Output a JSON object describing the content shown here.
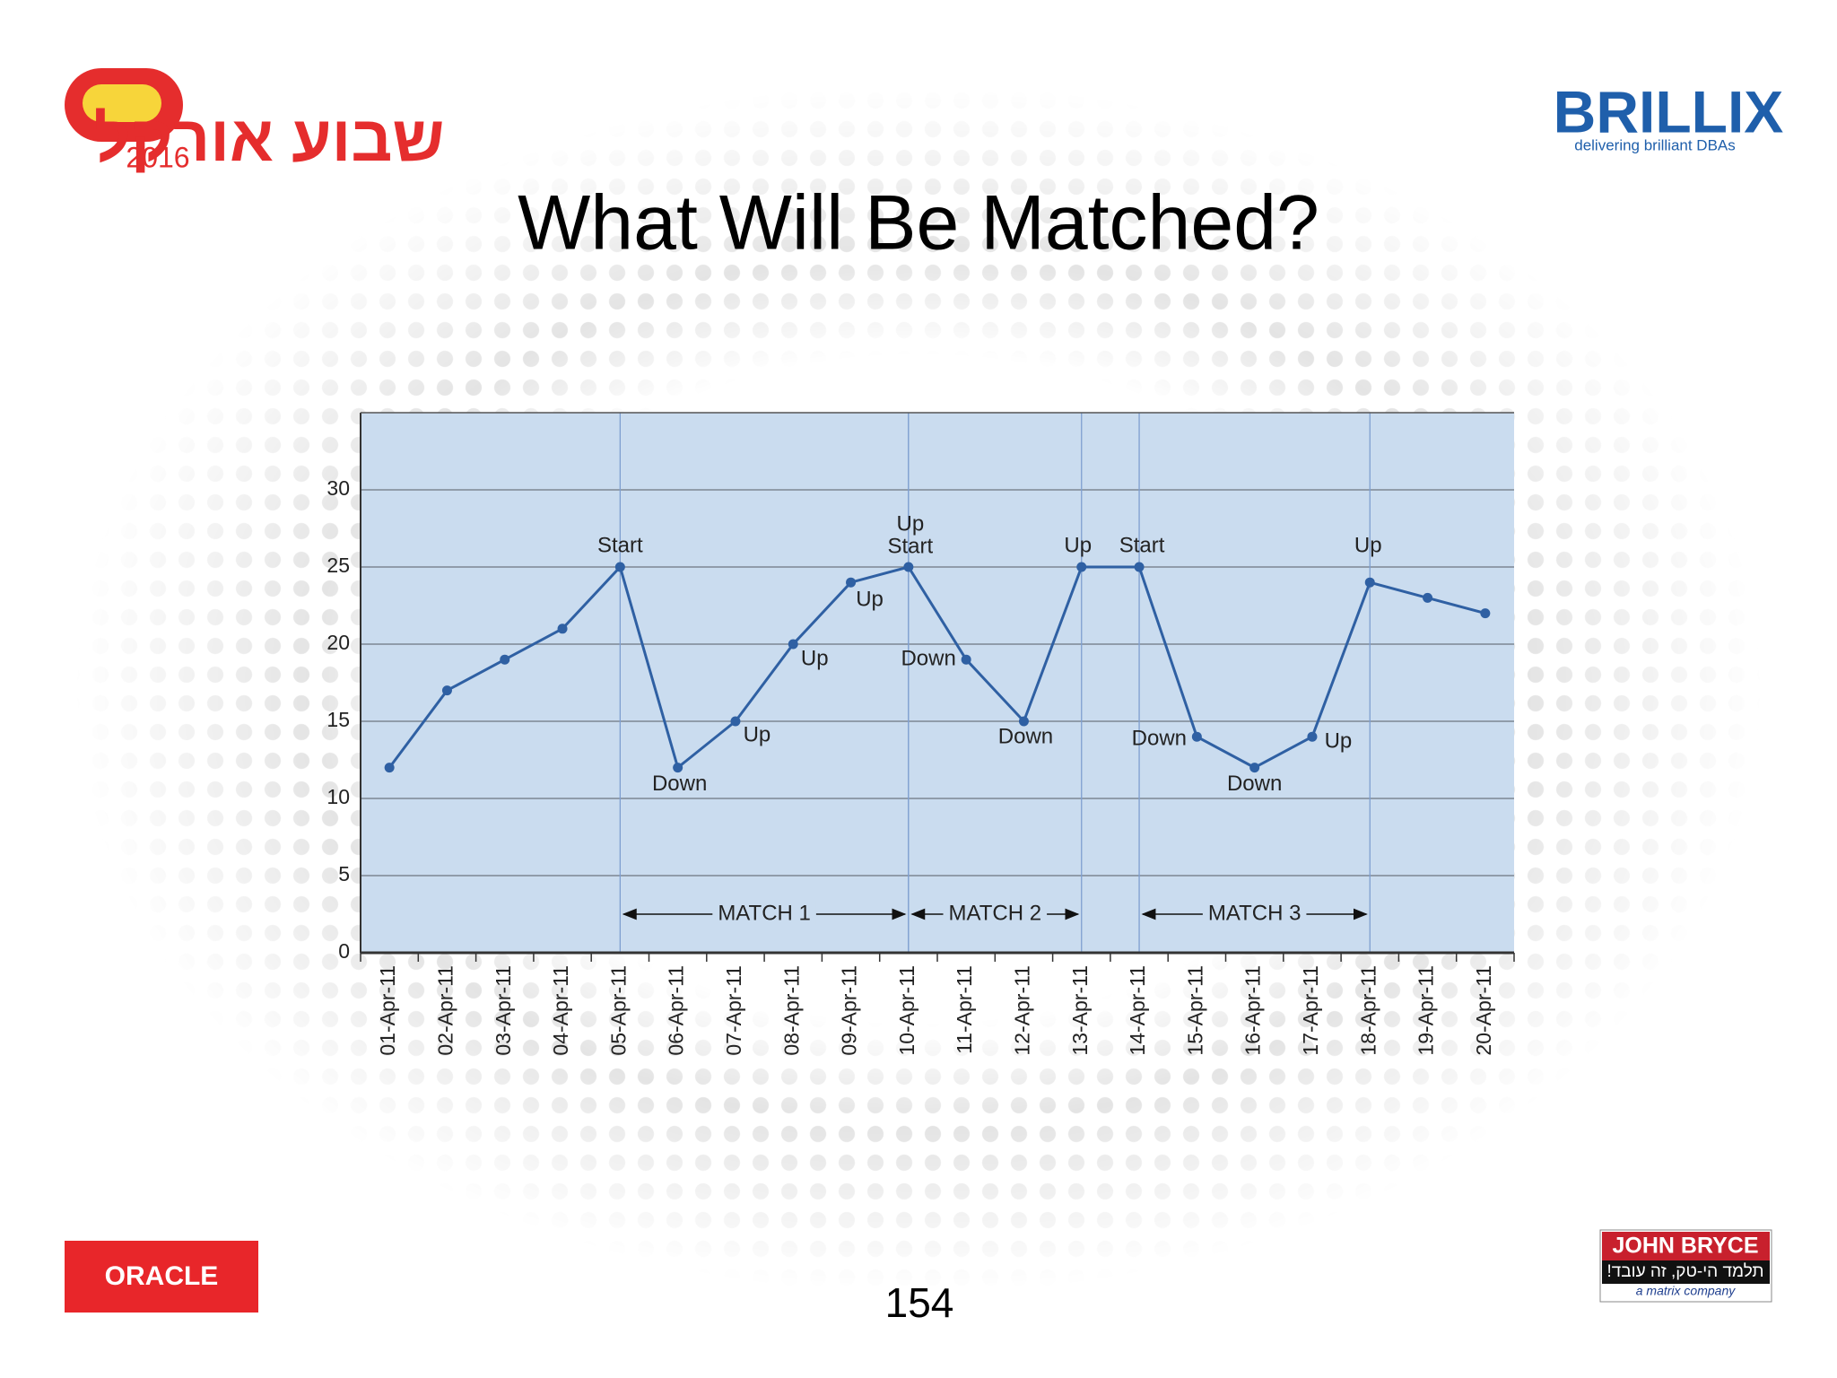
{
  "slide": {
    "title": "What Will Be Matched?",
    "page_number": "154",
    "logo_left": {
      "hebrew": "שבוע אורקל",
      "year": "2016"
    },
    "logo_right": {
      "name": "BRILLIX",
      "tagline": "delivering brilliant DBAs"
    },
    "logo_oracle": "ORACLE",
    "logo_jb": {
      "name": "JOHN BRYCE",
      "hebrew": "תלמד הי-טק, זה עובד!",
      "tagline": "a matrix company"
    }
  },
  "chart_data": {
    "type": "line",
    "categories": [
      "01-Apr-11",
      "02-Apr-11",
      "03-Apr-11",
      "04-Apr-11",
      "05-Apr-11",
      "06-Apr-11",
      "07-Apr-11",
      "08-Apr-11",
      "09-Apr-11",
      "10-Apr-11",
      "11-Apr-11",
      "12-Apr-11",
      "13-Apr-11",
      "14-Apr-11",
      "15-Apr-11",
      "16-Apr-11",
      "17-Apr-11",
      "18-Apr-11",
      "19-Apr-11",
      "20-Apr-11"
    ],
    "values": [
      12,
      17,
      19,
      21,
      25,
      12,
      15,
      20,
      24,
      25,
      19,
      15,
      25,
      25,
      14,
      12,
      14,
      24,
      23,
      22
    ],
    "point_labels": [
      [],
      [],
      [],
      [],
      [
        "Start"
      ],
      [
        "Down"
      ],
      [
        "Up"
      ],
      [
        "Up"
      ],
      [
        "Up"
      ],
      [
        "Up",
        "Start"
      ],
      [
        "Down"
      ],
      [
        "Down"
      ],
      [
        "Up"
      ],
      [
        "Start"
      ],
      [
        "Down"
      ],
      [
        "Down"
      ],
      [
        "Up"
      ],
      [
        "Up"
      ],
      [],
      []
    ],
    "matches": [
      {
        "label": "MATCH 1",
        "from": "05-Apr-11",
        "to": "10-Apr-11"
      },
      {
        "label": "MATCH 2",
        "from": "10-Apr-11",
        "to": "13-Apr-11"
      },
      {
        "label": "MATCH 3",
        "from": "14-Apr-11",
        "to": "18-Apr-11"
      }
    ],
    "color": "#2f60a3",
    "ylim": [
      0,
      35
    ],
    "yticks": [
      0,
      5,
      10,
      15,
      20,
      25,
      30
    ],
    "grid": true
  }
}
